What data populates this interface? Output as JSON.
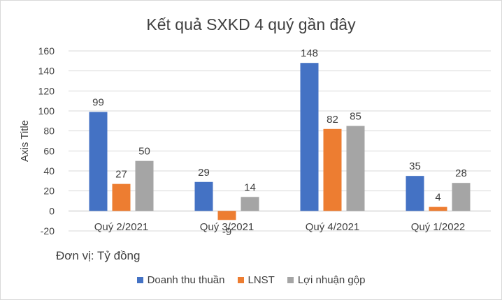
{
  "chart_data": {
    "type": "bar",
    "title": "Kết quả SXKD 4 quý gần đây",
    "xlabel": "",
    "ylabel": "Axis Title",
    "ylim": [
      -20,
      160
    ],
    "yticks": [
      -20,
      0,
      20,
      40,
      60,
      80,
      100,
      120,
      140,
      160
    ],
    "grid": true,
    "legend_position": "bottom",
    "categories": [
      "Quý 2/2021",
      "Quý 3/2021",
      "Quý 4/2021",
      "Quý 1/2022"
    ],
    "series": [
      {
        "name": "Doanh thu thuần",
        "color": "#4472C4",
        "values": [
          99,
          29,
          148,
          35
        ]
      },
      {
        "name": "LNST",
        "color": "#ED7D31",
        "values": [
          27,
          -9,
          82,
          4
        ]
      },
      {
        "name": "Lợi nhuận gộp",
        "color": "#A5A5A5",
        "values": [
          50,
          14,
          85,
          28
        ]
      }
    ]
  },
  "note": "Đơn vị: Tỷ đồng"
}
